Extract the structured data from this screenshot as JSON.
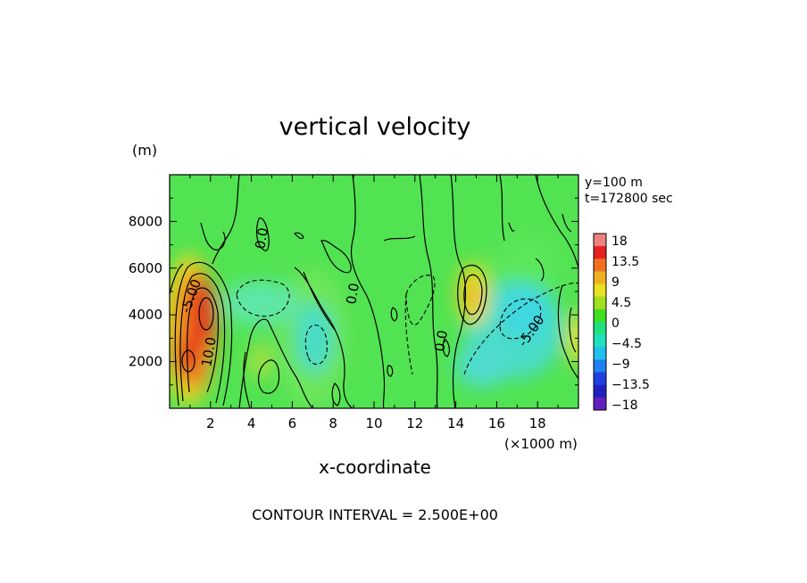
{
  "chart_data": {
    "type": "heatmap",
    "title": "vertical velocity",
    "xlabel": "x-coordinate",
    "x_unit": "(×1000 m)",
    "y_unit": "(m)",
    "xlim": [
      0,
      20
    ],
    "ylim": [
      0,
      10000
    ],
    "x_ticks": [
      "2",
      "4",
      "6",
      "8",
      "10",
      "12",
      "14",
      "16",
      "18"
    ],
    "y_ticks": [
      "2000",
      "4000",
      "6000",
      "8000"
    ],
    "info_lines": [
      "y=100 m",
      "t=172800 sec"
    ],
    "footer": "CONTOUR INTERVAL = 2.500E+00",
    "colorbar": {
      "labels": [
        "18",
        "13.5",
        "9",
        "4.5",
        "0",
        "-4.5",
        "-9",
        "-13.5",
        "-18"
      ],
      "colors": [
        "#f08080",
        "#e62020",
        "#f07020",
        "#f0b020",
        "#e8e020",
        "#a0e020",
        "#40e020",
        "#20e080",
        "#20e0c0",
        "#20c0f0",
        "#2080f0",
        "#2040e0",
        "#2020c0",
        "#6020c0"
      ]
    },
    "contour_labels": [
      "-5.00",
      "10.0",
      "0.0",
      "0.0",
      "0.0",
      "-5.00"
    ],
    "features": [
      {
        "x": 1.5,
        "y": 3500,
        "value": 16
      },
      {
        "x": 1.0,
        "y": 2000,
        "value": 15
      },
      {
        "x": 14.8,
        "y": 4800,
        "value": 9
      },
      {
        "x": 4.9,
        "y": 4500,
        "value": -4
      },
      {
        "x": 7.2,
        "y": 2800,
        "value": -5
      },
      {
        "x": 16.5,
        "y": 3200,
        "value": -6
      },
      {
        "x": 19.8,
        "y": 3000,
        "value": 5
      }
    ]
  }
}
